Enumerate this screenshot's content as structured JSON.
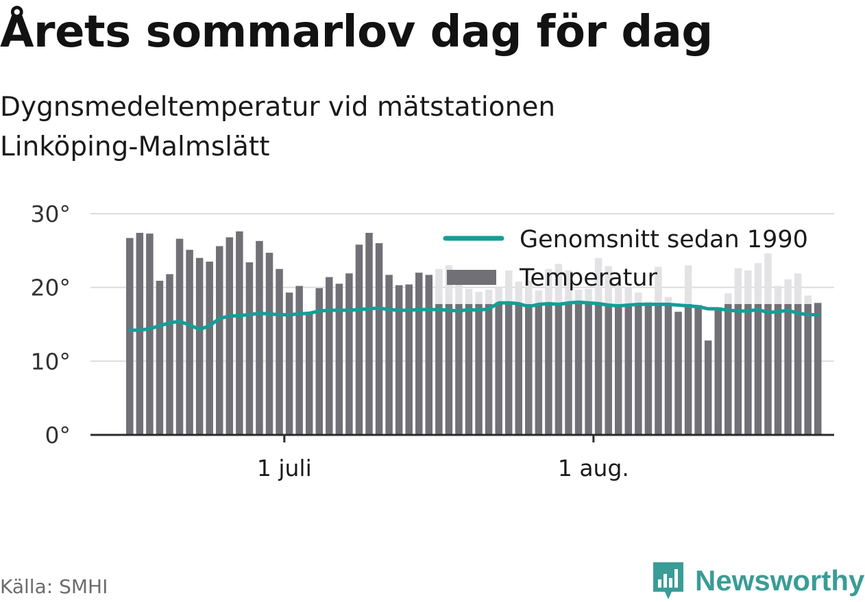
{
  "title": "Årets sommarlov dag för dag",
  "subtitle": "Dygnsmedeltemperatur vid mätstationen Linköping-Malmslätt",
  "source": "Källa: SMHI",
  "brand": "Newsworthy",
  "colors": {
    "bar": "#717076",
    "bar_faded": "#e3e3e5",
    "line": "#149e96",
    "grid": "#dcdcdc",
    "axis": "#2b2b2b",
    "brand": "#3a9c96"
  },
  "chart_data": {
    "type": "bar",
    "ylim": [
      0,
      30
    ],
    "y_ticks": [
      {
        "value": 0,
        "label": "0°"
      },
      {
        "value": 10,
        "label": "10°"
      },
      {
        "value": 20,
        "label": "20°"
      },
      {
        "value": 30,
        "label": "30°"
      }
    ],
    "x_ticks": [
      {
        "index": 16,
        "label": "1 juli"
      },
      {
        "index": 47,
        "label": "1 aug."
      }
    ],
    "legend": {
      "position": "top-right",
      "line_label": "Genomsnitt sedan 1990",
      "bar_label": "Temperatur"
    },
    "series": [
      {
        "name": "Temperatur",
        "type": "bar",
        "values": [
          26.7,
          27.4,
          27.3,
          20.9,
          21.8,
          26.6,
          25.1,
          24.0,
          23.5,
          25.6,
          26.8,
          27.6,
          23.4,
          26.3,
          24.7,
          22.5,
          19.3,
          20.2,
          16.5,
          19.9,
          21.4,
          20.5,
          21.9,
          25.8,
          27.4,
          26.0,
          21.7,
          20.3,
          20.4,
          22.0,
          21.7,
          22.5,
          23.0,
          20.5,
          19.8,
          19.4,
          19.7,
          20.0,
          22.3,
          20.8,
          20.9,
          19.6,
          22.5,
          23.2,
          22.3,
          19.7,
          19.8,
          24.0,
          22.9,
          20.3,
          20.1,
          19.3,
          18.1,
          22.8,
          18.7,
          16.7,
          23.0,
          17.6,
          12.8,
          16.9,
          19.2,
          22.6,
          22.3,
          23.3,
          24.6,
          20.2,
          21.1,
          21.9,
          18.9,
          17.9
        ]
      },
      {
        "name": "Genomsnitt sedan 1990",
        "type": "line",
        "values": [
          14.2,
          14.2,
          14.4,
          14.8,
          15.2,
          15.4,
          14.9,
          14.3,
          14.8,
          15.8,
          16.1,
          16.2,
          16.3,
          16.5,
          16.4,
          16.3,
          16.3,
          16.4,
          16.5,
          16.8,
          16.9,
          16.9,
          16.9,
          17.0,
          17.1,
          17.2,
          17.0,
          16.9,
          16.9,
          17.0,
          17.0,
          17.0,
          16.9,
          16.8,
          17.0,
          16.9,
          17.1,
          17.9,
          17.9,
          17.8,
          17.4,
          17.7,
          17.8,
          17.7,
          17.9,
          18.0,
          17.9,
          17.8,
          17.6,
          17.5,
          17.6,
          17.7,
          17.7,
          17.7,
          17.7,
          17.6,
          17.5,
          17.4,
          17.1,
          17.1,
          16.9,
          16.8,
          16.8,
          17.0,
          16.6,
          16.7,
          16.9,
          16.5,
          16.3,
          16.3
        ]
      }
    ]
  }
}
